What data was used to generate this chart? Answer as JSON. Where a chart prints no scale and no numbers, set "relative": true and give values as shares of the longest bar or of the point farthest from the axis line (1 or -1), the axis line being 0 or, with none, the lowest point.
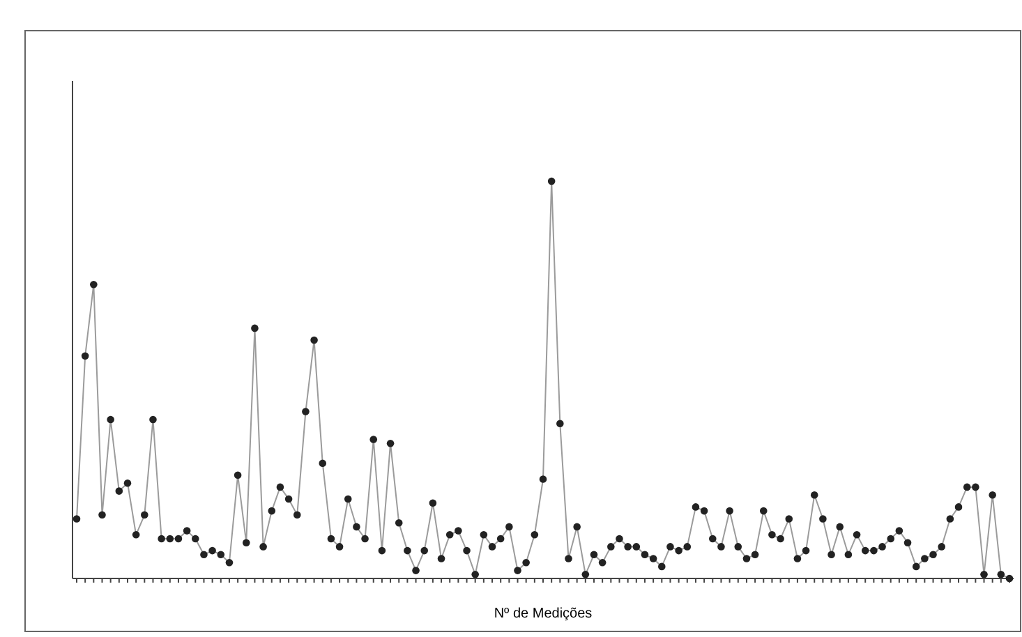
{
  "chart_data": {
    "type": "line",
    "relative": true,
    "marker": "circle",
    "xlabel": "Nº de Medições",
    "categories": [
      null,
      null,
      null,
      null,
      null,
      null,
      null,
      null,
      null,
      null,
      null,
      null,
      null,
      null,
      null,
      null,
      null,
      null,
      null,
      null,
      null,
      null,
      null,
      null,
      null,
      null,
      null,
      null,
      null,
      null,
      null,
      null,
      null,
      null,
      null,
      null,
      null,
      null,
      null,
      null,
      null,
      null,
      null,
      null,
      null,
      null,
      null,
      null,
      null,
      null,
      null,
      null,
      null,
      null,
      null,
      null,
      null,
      null,
      null,
      null,
      null,
      null,
      null,
      null,
      null,
      null,
      null,
      null,
      null,
      null,
      null,
      null,
      null,
      null,
      null,
      null,
      null,
      null,
      null,
      null,
      null,
      null,
      null,
      null,
      null,
      null,
      null,
      null,
      null,
      null,
      null,
      null,
      null,
      null,
      null,
      null,
      null,
      null,
      null,
      null,
      null,
      null,
      null,
      null,
      null,
      null,
      null,
      null,
      null,
      null,
      null
    ],
    "series": [
      {
        "color": "#222222",
        "values": [
          0.15,
          0.56,
          0.74,
          0.16,
          0.4,
          0.22,
          0.24,
          0.11,
          0.16,
          0.4,
          0.1,
          0.1,
          0.1,
          0.12,
          0.1,
          0.06,
          0.07,
          0.06,
          0.04,
          0.26,
          0.09,
          0.63,
          0.08,
          0.17,
          0.23,
          0.2,
          0.16,
          0.42,
          0.6,
          0.29,
          0.1,
          0.08,
          0.2,
          0.13,
          0.1,
          0.35,
          0.07,
          0.34,
          0.14,
          0.07,
          0.02,
          0.07,
          0.19,
          0.05,
          0.11,
          0.12,
          0.07,
          0.01,
          0.11,
          0.08,
          0.1,
          0.13,
          0.02,
          0.04,
          0.11,
          0.25,
          1,
          0.39,
          0.05,
          0.13,
          0.01,
          0.06,
          0.04,
          0.08,
          0.1,
          0.08,
          0.08,
          0.06,
          0.05,
          0.03,
          0.08,
          0.07,
          0.08,
          0.18,
          0.17,
          0.1,
          0.08,
          0.17,
          0.08,
          0.05,
          0.06,
          0.17,
          0.11,
          0.1,
          0.15,
          0.05,
          0.07,
          0.21,
          0.15,
          0.06,
          0.13,
          0.06,
          0.11,
          0.07,
          0.07,
          0.08,
          0.1,
          0.12,
          0.09,
          0.03,
          0.05,
          0.06,
          0.08,
          0.15,
          0.18,
          0.23,
          0.23,
          0.01,
          0.21,
          0.01,
          0
        ]
      }
    ]
  }
}
